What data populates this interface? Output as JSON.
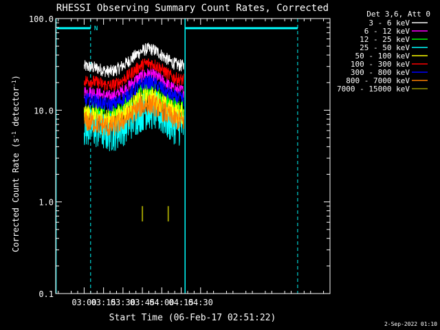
{
  "chart_data": {
    "type": "line",
    "title": "RHESSI Observing Summary Count Rates, Corrected",
    "xlabel": "Start Time (06-Feb-17 02:51:22)",
    "ylabel_main": "Corrected Count Rate (s",
    "ylabel_sup1": "-1",
    "ylabel_mid": " detector",
    "ylabel_sup2": "-1",
    "ylabel_end": ")",
    "yscale": "log",
    "ylim": [
      0.1,
      100.0
    ],
    "yticks": [
      {
        "value": 0.1,
        "label": "0.1"
      },
      {
        "value": 1.0,
        "label": "1.0"
      },
      {
        "value": 10.0,
        "label": "10.0"
      },
      {
        "value": 100.0,
        "label": "100.0"
      }
    ],
    "xlim_min": [
      -22,
      190
    ],
    "xticks": [
      {
        "min": 0,
        "label": "03:00"
      },
      {
        "min": 15,
        "label": "03:15"
      },
      {
        "min": 30,
        "label": "03:30"
      },
      {
        "min": 45,
        "label": "03:45"
      },
      {
        "min": 60,
        "label": "04:00"
      },
      {
        "min": 75,
        "label": "04:15"
      },
      {
        "min": 90,
        "label": "04:30"
      }
    ],
    "legend_header": "Det 3,6, Att 0",
    "night_marker": "N",
    "footer_date": "2-Sep-2022 01:10",
    "series": [
      {
        "name": "3 - 6 keV",
        "color": "#ffffff",
        "level": 30,
        "noise": 0.07
      },
      {
        "name": "6 - 12 keV",
        "color": "#ff00ff",
        "level": 16,
        "noise": 0.07
      },
      {
        "name": "12 - 25 keV",
        "color": "#00ff00",
        "level": 10,
        "noise": 0.12
      },
      {
        "name": "25 - 50 keV",
        "color": "#00ffff",
        "level": 6.5,
        "noise": 0.22
      },
      {
        "name": "50 - 100 keV",
        "color": "#ffff00",
        "level": 9,
        "noise": 0.12
      },
      {
        "name": "100 - 300 keV",
        "color": "#ff0000",
        "level": 21,
        "noise": 0.07
      },
      {
        "name": "300 - 800 keV",
        "color": "#0000ff",
        "level": 13,
        "noise": 0.08
      },
      {
        "name": "800 - 7000 keV",
        "color": "#ff8000",
        "level": 7.5,
        "noise": 0.12
      },
      {
        "name": "7000 - 15000 keV",
        "color": "#999900",
        "level": 0.72,
        "noise": 0.0
      }
    ]
  }
}
